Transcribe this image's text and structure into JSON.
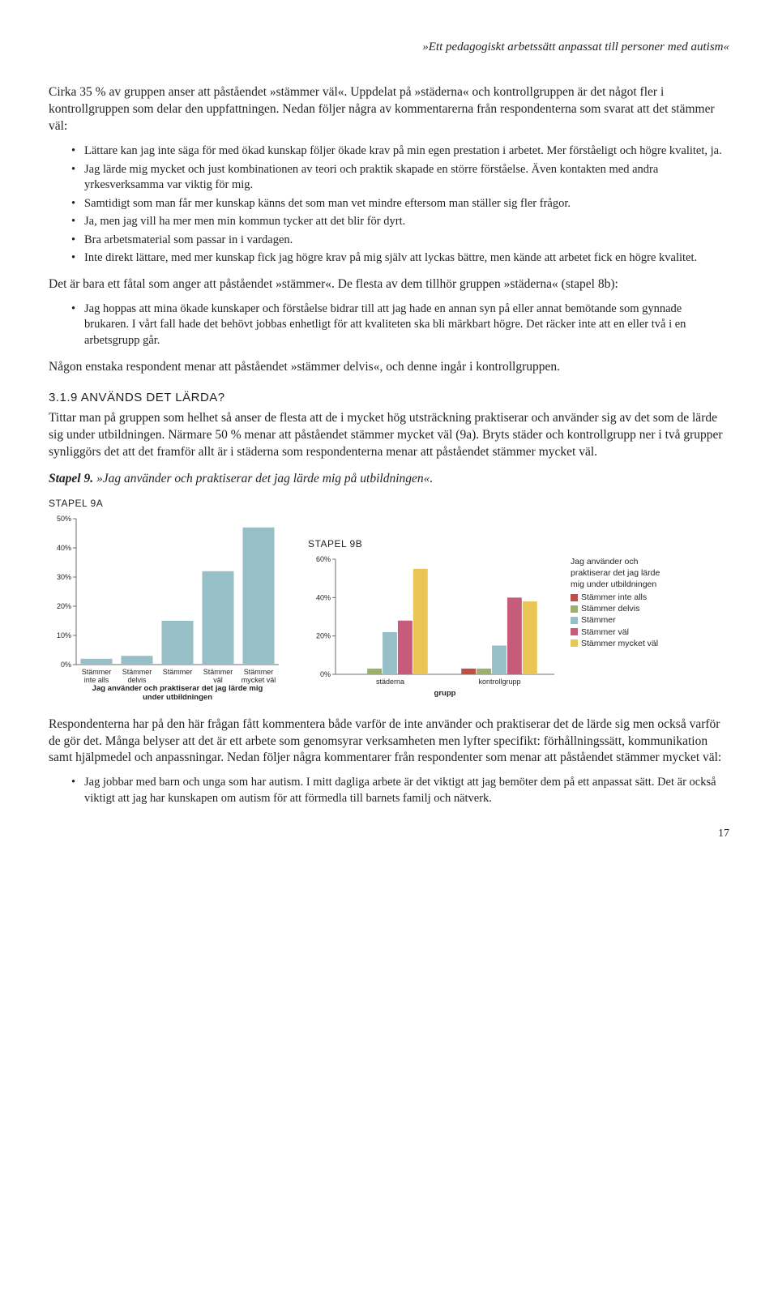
{
  "header": "»Ett pedagogiskt arbetssätt anpassat till personer med autism«",
  "para1": "Cirka 35 % av gruppen anser att påståendet »stämmer väl«. Uppdelat på »städerna« och kontrollgruppen är det något fler i kontrollgruppen som delar den uppfattningen. Nedan följer några av kommentarerna från respondenterna som svarat att det stämmer väl:",
  "bullets1": [
    "Lättare kan jag inte säga för med ökad kunskap följer ökade krav på min egen prestation i arbetet. Mer förståeligt och högre kvalitet, ja.",
    "Jag lärde mig mycket och just kombinationen av teori och praktik skapade en större förståelse. Även kontakten med andra yrkesverksamma var viktig för mig.",
    "Samtidigt som man får mer kunskap känns det som man vet mindre eftersom man ställer sig fler frågor.",
    "Ja, men jag vill ha mer men min kommun tycker att det blir för dyrt.",
    "Bra arbetsmaterial som passar in i vardagen.",
    "Inte direkt lättare, med mer kunskap fick jag högre krav på mig själv att lyckas bättre, men kände att arbetet fick en högre kvalitet."
  ],
  "para2": "Det är bara ett fåtal som anger att påståendet »stämmer«. De flesta av dem tillhör gruppen »städerna« (stapel 8b):",
  "bullets2": [
    "Jag hoppas att mina ökade kunskaper och förståelse bidrar till att jag hade en annan syn på eller annat bemötande som gynnade brukaren. I vårt fall hade det behövt jobbas enhetligt för att kvaliteten ska bli märkbart högre. Det räcker inte att en eller två i en arbetsgrupp går."
  ],
  "para3": "Någon enstaka respondent menar att påståendet »stämmer delvis«, och denne ingår i kontrollgruppen.",
  "section_head": "3.1.9 ANVÄNDS DET LÄRDA?",
  "para4": "Tittar man på gruppen som helhet så anser de flesta att de i mycket hög utsträckning praktiserar och använder sig av det som de lärde sig under utbildningen. Närmare 50 % menar att påståendet stämmer mycket väl (9a). Bryts städer och kontrollgrupp ner i två grupper synliggörs det att det framför allt är i städerna som respondenterna menar att påståendet stämmer mycket väl.",
  "stapel_prefix": "Stapel 9.",
  "stapel_quote": " »Jag använder och praktiserar det jag lärde mig på utbildningen«.",
  "chart9a": {
    "label": "STAPEL 9A",
    "type": "bar",
    "ylim": [
      0,
      50
    ],
    "ytick_step": 10,
    "categories": [
      "Stämmer\ninte alls",
      "Stämmer\ndelvis",
      "Stämmer",
      "Stämmer\nväl",
      "Stämmer\nmycket väl"
    ],
    "values": [
      2,
      3,
      15,
      32,
      47
    ],
    "bar_color": "#97bfc7",
    "axis_color": "#6d6e71",
    "axis_title": "Jag använder och praktiserar det jag lärde mig\nunder utbildningen",
    "tick_font_size": 9,
    "axis_title_font_size": 9.5,
    "bar_width": 0.78
  },
  "chart9b": {
    "label": "STAPEL 9B",
    "type": "grouped-bar",
    "ylim": [
      0,
      60
    ],
    "ytick_step": 20,
    "groups": [
      "städerna",
      "kontrollgrupp"
    ],
    "series": [
      {
        "name": "Stämmer inte alls",
        "color": "#bf4f44",
        "values": [
          0,
          3
        ]
      },
      {
        "name": "Stämmer delvis",
        "color": "#9bb06a",
        "values": [
          3,
          3
        ]
      },
      {
        "name": "Stämmer",
        "color": "#97bfc7",
        "values": [
          22,
          15
        ]
      },
      {
        "name": "Stämmer väl",
        "color": "#c75b7a",
        "values": [
          28,
          40
        ]
      },
      {
        "name": "Stämmer mycket väl",
        "color": "#e9c558",
        "values": [
          55,
          38
        ]
      }
    ],
    "axis_color": "#6d6e71",
    "x_axis_label": "grupp",
    "tick_font_size": 9,
    "bar_width": 0.14,
    "legend_title": "Jag använder och\npraktiserar det jag lärde\nmig under utbildningen"
  },
  "para5": "Respondenterna har på den här frågan fått kommentera både varför de inte använder och praktiserar det de lärde sig men också varför de gör det. Många belyser att det är ett arbete som genomsyrar verksamheten men lyfter specifikt: förhållningssätt, kommunikation samt hjälpmedel och anpassningar. Nedan följer några kommentarer från respondenter som menar att påståendet stämmer mycket väl:",
  "bullets3": [
    "Jag jobbar med barn och unga som har autism. I mitt dagliga arbete är det viktigt att jag bemöter dem på ett anpassat sätt. Det är också viktigt att jag har kunskapen om autism för att förmedla till barnets familj och nätverk."
  ],
  "page_number": "17"
}
